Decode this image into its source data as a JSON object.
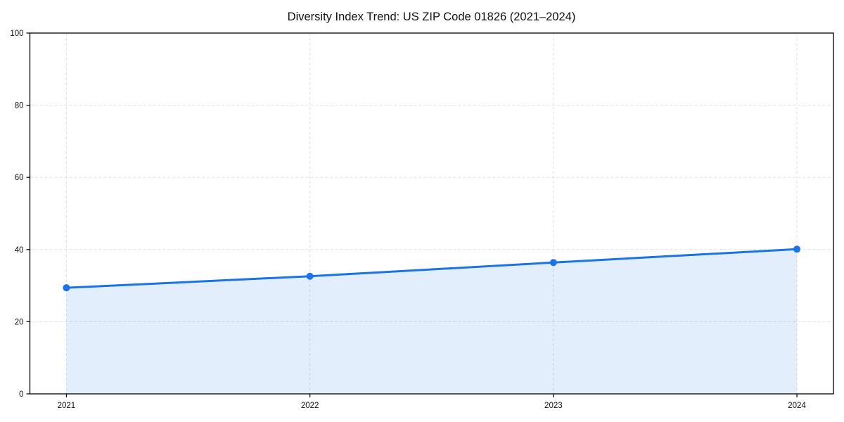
{
  "figure": {
    "background_color": "#ffffff"
  },
  "chart_data": {
    "type": "line",
    "title": "Diversity Index Trend: US ZIP Code 01826 (2021–2024)",
    "categories": [
      "2021",
      "2022",
      "2023",
      "2024"
    ],
    "series": [
      {
        "name": "Diversity Index",
        "values": [
          29.4,
          32.6,
          36.4,
          40.1
        ]
      }
    ],
    "xlabel": "",
    "ylabel": "",
    "ylim": [
      0,
      100
    ],
    "yticks": [
      0,
      20,
      40,
      60,
      80,
      100
    ],
    "grid": true,
    "grid_style": "dashed",
    "grid_color": "#e0e0e0",
    "legend": false,
    "line_color": "#1a73e8",
    "fill_opacity": 0.12,
    "marker": "circle",
    "area_fill": true,
    "spine_color": "#000000",
    "tick_color": "#000000"
  }
}
